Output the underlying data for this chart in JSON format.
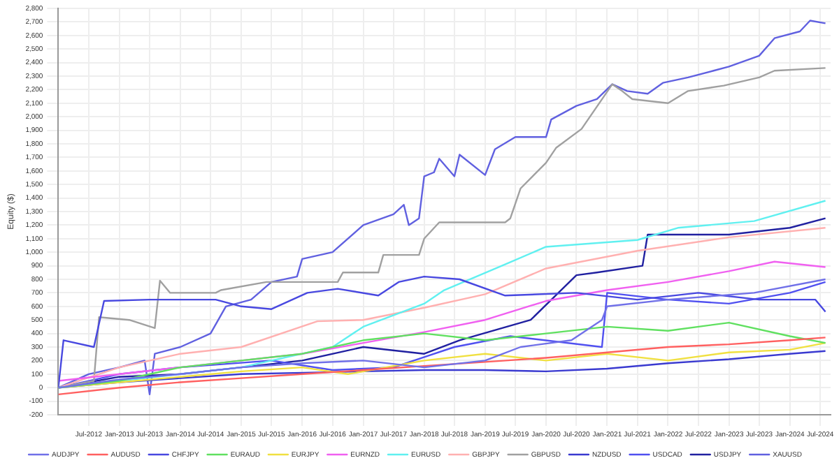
{
  "chart_data": {
    "type": "line",
    "ylabel": "Equity ($)",
    "xlim": [
      "2012-01",
      "2024-09"
    ],
    "xticks": [
      {
        "value": "2012-07",
        "label": "Jul-2012"
      },
      {
        "value": "2013-01",
        "label": "Jan-2013"
      },
      {
        "value": "2013-07",
        "label": "Jul-2013"
      },
      {
        "value": "2014-01",
        "label": "Jan-2014"
      },
      {
        "value": "2014-07",
        "label": "Jul-2014"
      },
      {
        "value": "2015-01",
        "label": "Jan-2015"
      },
      {
        "value": "2015-07",
        "label": "Jul-2015"
      },
      {
        "value": "2016-01",
        "label": "Jan-2016"
      },
      {
        "value": "2016-07",
        "label": "Jul-2016"
      },
      {
        "value": "2017-01",
        "label": "Jan-2017"
      },
      {
        "value": "2017-07",
        "label": "Jul-2017"
      },
      {
        "value": "2018-01",
        "label": "Jan-2018"
      },
      {
        "value": "2018-07",
        "label": "Jul-2018"
      },
      {
        "value": "2019-01",
        "label": "Jan-2019"
      },
      {
        "value": "2019-07",
        "label": "Jul-2019"
      },
      {
        "value": "2020-01",
        "label": "Jan-2020"
      },
      {
        "value": "2020-07",
        "label": "Jul-2020"
      },
      {
        "value": "2021-01",
        "label": "Jan-2021"
      },
      {
        "value": "2021-07",
        "label": "Jul-2021"
      },
      {
        "value": "2022-01",
        "label": "Jan-2022"
      },
      {
        "value": "2022-07",
        "label": "Jul-2022"
      },
      {
        "value": "2023-01",
        "label": "Jan-2023"
      },
      {
        "value": "2023-07",
        "label": "Jul-2023"
      },
      {
        "value": "2024-01",
        "label": "Jan-2024"
      },
      {
        "value": "2024-07",
        "label": "Jul-2024"
      }
    ],
    "ylim": [
      -200,
      2800
    ],
    "yticks": [
      -200,
      -100,
      0,
      100,
      200,
      300,
      400,
      500,
      600,
      700,
      800,
      900,
      {
        "value": 1000,
        "label": "1,000"
      },
      {
        "value": 1100,
        "label": "1,100"
      },
      {
        "value": 1200,
        "label": "1,200"
      },
      {
        "value": 1300,
        "label": "1,300"
      },
      {
        "value": 1400,
        "label": "1,400"
      },
      {
        "value": 1500,
        "label": "1,500"
      },
      {
        "value": 1600,
        "label": "1,600"
      },
      {
        "value": 1700,
        "label": "1,700"
      },
      {
        "value": 1800,
        "label": "1,800"
      },
      {
        "value": 1900,
        "label": "1,900"
      },
      {
        "value": 2000,
        "label": "2,000"
      },
      {
        "value": 2100,
        "label": "2,100"
      },
      {
        "value": 2200,
        "label": "2,200"
      },
      {
        "value": 2300,
        "label": "2,300"
      },
      {
        "value": 2400,
        "label": "2,400"
      },
      {
        "value": 2500,
        "label": "2,500"
      },
      {
        "value": 2600,
        "label": "2,600"
      },
      {
        "value": 2700,
        "label": "2,700"
      },
      {
        "value": 2800,
        "label": "2,800"
      }
    ],
    "grid": true,
    "legend": "bottom",
    "marker": "none",
    "line_style": "solid",
    "series": [
      {
        "name": "AUDJPY",
        "color": "#7070e8",
        "x": [
          "2012-01",
          "2013-01",
          "2014-01",
          "2015-01",
          "2016-01",
          "2017-01",
          "2018-01",
          "2019-01",
          "2019-08",
          "2020-06",
          "2020-12",
          "2021-01",
          "2022-01",
          "2023-06",
          "2024-08"
        ],
        "values": [
          0,
          60,
          100,
          150,
          180,
          200,
          150,
          200,
          300,
          350,
          500,
          600,
          650,
          700,
          800
        ]
      },
      {
        "name": "AUDUSD",
        "color": "#ff6060",
        "x": [
          "2012-01",
          "2013-01",
          "2014-01",
          "2015-01",
          "2016-01",
          "2017-01",
          "2018-01",
          "2019-01",
          "2020-01",
          "2021-01",
          "2022-01",
          "2023-01",
          "2024-01",
          "2024-08"
        ],
        "values": [
          -50,
          0,
          40,
          70,
          100,
          130,
          160,
          190,
          220,
          260,
          300,
          320,
          350,
          370
        ]
      },
      {
        "name": "CHFJPY",
        "color": "#4848e0",
        "x": [
          "2012-01",
          "2012-02",
          "2012-08",
          "2012-10",
          "2013-07",
          "2014-08",
          "2015-01",
          "2015-07",
          "2016-02",
          "2016-08",
          "2017-04",
          "2017-08",
          "2018-01",
          "2018-08",
          "2019-05",
          "2020-07",
          "2021-07",
          "2022-07",
          "2023-07",
          "2024-06",
          "2024-08"
        ],
        "values": [
          0,
          350,
          300,
          640,
          650,
          650,
          600,
          580,
          700,
          730,
          680,
          780,
          820,
          800,
          680,
          700,
          650,
          700,
          650,
          650,
          560
        ]
      },
      {
        "name": "EURAUD",
        "color": "#60e060",
        "x": [
          "2012-01",
          "2013-01",
          "2014-01",
          "2015-01",
          "2016-01",
          "2017-01",
          "2018-01",
          "2019-01",
          "2020-01",
          "2021-01",
          "2022-01",
          "2023-01",
          "2024-01",
          "2024-08"
        ],
        "values": [
          0,
          50,
          150,
          200,
          250,
          350,
          400,
          350,
          400,
          450,
          420,
          480,
          380,
          330
        ]
      },
      {
        "name": "EURJPY",
        "color": "#f0e040",
        "x": [
          "2012-01",
          "2013-01",
          "2014-01",
          "2015-01",
          "2016-01",
          "2016-10",
          "2018-01",
          "2019-01",
          "2020-01",
          "2021-01",
          "2022-01",
          "2023-01",
          "2024-01",
          "2024-08"
        ],
        "values": [
          0,
          40,
          80,
          120,
          150,
          100,
          200,
          250,
          200,
          250,
          200,
          260,
          280,
          330
        ]
      },
      {
        "name": "EURNZD",
        "color": "#f060f0",
        "x": [
          "2012-01",
          "2013-01",
          "2014-01",
          "2015-01",
          "2016-01",
          "2017-01",
          "2018-01",
          "2019-01",
          "2020-01",
          "2021-01",
          "2022-01",
          "2023-01",
          "2023-10",
          "2024-08"
        ],
        "values": [
          50,
          100,
          150,
          200,
          250,
          330,
          410,
          500,
          640,
          720,
          780,
          860,
          930,
          890
        ]
      },
      {
        "name": "EURUSD",
        "color": "#60f0f0",
        "x": [
          "2012-01",
          "2013-01",
          "2014-01",
          "2015-01",
          "2015-07",
          "2016-07",
          "2017-01",
          "2018-01",
          "2018-05",
          "2019-05",
          "2020-01",
          "2021-07",
          "2022-03",
          "2023-06",
          "2024-08"
        ],
        "values": [
          0,
          50,
          100,
          150,
          200,
          300,
          450,
          620,
          720,
          910,
          1040,
          1090,
          1180,
          1230,
          1380
        ]
      },
      {
        "name": "GBPJPY",
        "color": "#ffb0b0",
        "x": [
          "2012-01",
          "2013-01",
          "2014-01",
          "2015-01",
          "2016-04",
          "2017-01",
          "2018-01",
          "2019-01",
          "2020-01",
          "2021-07",
          "2023-01",
          "2024-08"
        ],
        "values": [
          0,
          150,
          250,
          300,
          490,
          500,
          590,
          690,
          880,
          1010,
          1110,
          1180
        ]
      },
      {
        "name": "GBPUSD",
        "color": "#a0a0a0",
        "x": [
          "2012-01",
          "2012-08",
          "2012-09",
          "2013-03",
          "2013-08",
          "2013-09",
          "2013-11",
          "2014-08",
          "2014-09",
          "2015-06",
          "2016-08",
          "2016-09",
          "2017-04",
          "2017-05",
          "2017-12",
          "2018-01",
          "2018-04",
          "2019-05",
          "2019-06",
          "2019-08",
          "2020-01",
          "2020-03",
          "2020-08",
          "2021-02",
          "2021-04",
          "2021-06",
          "2022-01",
          "2022-05",
          "2022-12",
          "2023-07",
          "2023-10",
          "2024-08"
        ],
        "values": [
          0,
          50,
          520,
          500,
          440,
          790,
          700,
          700,
          720,
          780,
          780,
          850,
          850,
          980,
          980,
          1100,
          1220,
          1220,
          1250,
          1470,
          1660,
          1770,
          1910,
          2240,
          2190,
          2130,
          2100,
          2190,
          2230,
          2290,
          2340,
          2360
        ]
      },
      {
        "name": "NZDUSD",
        "color": "#3a3ad0",
        "x": [
          "2012-01",
          "2013-01",
          "2014-01",
          "2015-01",
          "2016-01",
          "2017-01",
          "2018-01",
          "2019-01",
          "2020-01",
          "2021-01",
          "2022-01",
          "2023-01",
          "2024-01",
          "2024-08"
        ],
        "values": [
          0,
          40,
          70,
          100,
          110,
          120,
          130,
          130,
          120,
          140,
          180,
          210,
          250,
          270
        ]
      },
      {
        "name": "USDCAD",
        "color": "#5050f0",
        "x": [
          "2012-01",
          "2013-01",
          "2014-01",
          "2015-07",
          "2016-07",
          "2017-07",
          "2018-07",
          "2019-06",
          "2020-12",
          "2021-01",
          "2022-01",
          "2023-01",
          "2024-01",
          "2024-08"
        ],
        "values": [
          0,
          100,
          150,
          200,
          130,
          150,
          300,
          380,
          300,
          700,
          650,
          620,
          700,
          780
        ]
      },
      {
        "name": "USDJPY",
        "color": "#2020a0",
        "x": [
          "2012-01",
          "2013-01",
          "2014-01",
          "2015-01",
          "2016-01",
          "2017-01",
          "2018-01",
          "2018-08",
          "2019-10",
          "2020-07",
          "2020-11",
          "2021-08",
          "2021-09",
          "2023-01",
          "2024-01",
          "2024-08"
        ],
        "values": [
          0,
          80,
          100,
          150,
          200,
          300,
          250,
          350,
          500,
          830,
          850,
          900,
          1130,
          1130,
          1180,
          1250
        ]
      },
      {
        "name": "XAUUSD",
        "color": "#6060e0",
        "x": [
          "2012-01",
          "2012-07",
          "2013-01",
          "2013-06",
          "2013-07",
          "2013-08",
          "2014-01",
          "2014-07",
          "2014-10",
          "2015-03",
          "2015-07",
          "2015-12",
          "2016-01",
          "2016-07",
          "2017-01",
          "2017-07",
          "2017-09",
          "2017-10",
          "2017-12",
          "2018-01",
          "2018-03",
          "2018-04",
          "2018-07",
          "2018-08",
          "2019-01",
          "2019-03",
          "2019-07",
          "2020-01",
          "2020-02",
          "2020-07",
          "2020-11",
          "2021-02",
          "2021-05",
          "2021-09",
          "2021-12",
          "2022-05",
          "2022-10",
          "2023-01",
          "2023-07",
          "2023-10",
          "2024-03",
          "2024-05",
          "2024-08"
        ],
        "values": [
          0,
          100,
          150,
          200,
          -50,
          250,
          300,
          400,
          600,
          650,
          780,
          820,
          950,
          1000,
          1200,
          1280,
          1350,
          1200,
          1250,
          1560,
          1590,
          1690,
          1560,
          1720,
          1570,
          1760,
          1850,
          1850,
          1980,
          2080,
          2130,
          2240,
          2190,
          2170,
          2250,
          2290,
          2340,
          2370,
          2450,
          2580,
          2630,
          2710,
          2690
        ]
      }
    ]
  }
}
